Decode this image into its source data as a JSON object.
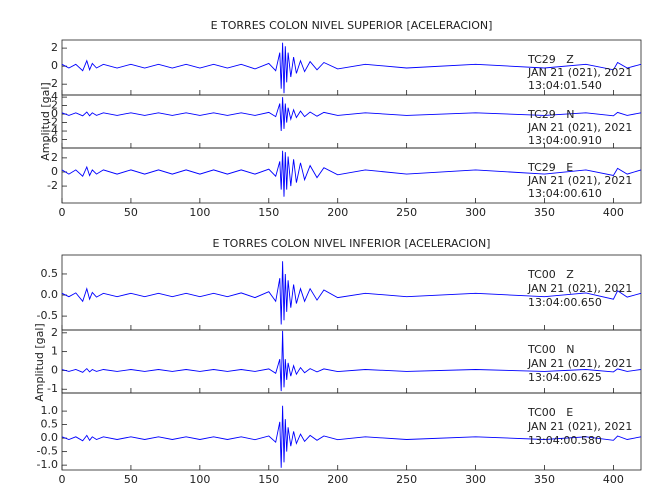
{
  "chart_data": [
    {
      "type": "line",
      "title": "E TORRES COLON NIVEL SUPERIOR [ACELERACION]",
      "y_label": "Amplitud [gal]",
      "xlim": [
        0,
        420
      ],
      "xticks": [
        0,
        50,
        100,
        150,
        200,
        250,
        300,
        350,
        400
      ],
      "color": "#0000ff",
      "x": [
        0,
        5,
        10,
        15,
        18,
        20,
        22,
        25,
        30,
        40,
        50,
        60,
        70,
        80,
        90,
        100,
        110,
        120,
        130,
        140,
        150,
        155,
        158,
        159,
        160,
        161,
        162,
        163,
        164,
        166,
        168,
        170,
        173,
        176,
        180,
        185,
        190,
        200,
        220,
        250,
        300,
        350,
        380,
        400,
        403,
        410,
        420
      ],
      "panels": [
        {
          "ylim": [
            -3.2,
            2.9
          ],
          "yticks": [
            -2,
            0,
            2
          ],
          "annotation": [
            "TC29   Z",
            "JAN 21 (021), 2021",
            "13:04:01.540"
          ],
          "values": [
            0.2,
            -0.2,
            0.2,
            -0.5,
            0.6,
            -0.4,
            0.3,
            -0.2,
            0.2,
            -0.2,
            0.2,
            -0.2,
            0.2,
            -0.2,
            0.2,
            -0.2,
            0.2,
            -0.2,
            0.2,
            -0.3,
            0.3,
            -0.5,
            1.5,
            -2.5,
            2.6,
            -3,
            2.2,
            -1.8,
            1.5,
            -1.2,
            1,
            -0.8,
            0.6,
            -0.6,
            0.5,
            -0.4,
            0.4,
            -0.3,
            0.2,
            -0.2,
            0.2,
            -0.2,
            0.2,
            -0.4,
            0.4,
            -0.2,
            0.2
          ]
        },
        {
          "ylim": [
            -8,
            4.5
          ],
          "yticks": [
            -6,
            -4,
            -2,
            0,
            2,
            4
          ],
          "annotation": [
            "TC29   N",
            "JAN 21 (021), 2021",
            "13:04:00.910"
          ],
          "values": [
            0.3,
            -0.3,
            0.3,
            -0.4,
            0.5,
            -0.4,
            0.3,
            -0.3,
            0.3,
            -0.3,
            0.3,
            -0.3,
            0.3,
            -0.3,
            0.3,
            -0.3,
            0.3,
            -0.3,
            0.3,
            -0.3,
            0.4,
            -0.6,
            2.5,
            -4,
            4,
            -3.5,
            2.5,
            -2,
            1.5,
            -1.2,
            1,
            -0.8,
            0.7,
            -0.6,
            0.5,
            -0.5,
            0.4,
            -0.3,
            0.3,
            -0.3,
            0.3,
            -0.3,
            0.3,
            -0.4,
            0.4,
            -0.3,
            0.3
          ]
        },
        {
          "ylim": [
            -4.4,
            3.4
          ],
          "yticks": [
            -2,
            0,
            2
          ],
          "annotation": [
            "TC29   E",
            "JAN 21 (021), 2021",
            "13:04:00.610"
          ],
          "values": [
            0.3,
            -0.3,
            0.3,
            -0.6,
            0.7,
            -0.5,
            0.3,
            -0.3,
            0.3,
            -0.3,
            0.3,
            -0.3,
            0.3,
            -0.3,
            0.3,
            -0.3,
            0.3,
            -0.3,
            0.3,
            -0.3,
            0.4,
            -0.6,
            1.5,
            -2.5,
            3,
            -3.5,
            2.8,
            -2.5,
            2.2,
            -2,
            1.8,
            -1.5,
            1.3,
            -1.1,
            0.9,
            -0.8,
            0.6,
            -0.4,
            0.3,
            -0.3,
            0.3,
            -0.3,
            0.3,
            -0.5,
            0.5,
            -0.3,
            0.3
          ]
        }
      ]
    },
    {
      "type": "line",
      "title": "E TORRES COLON NIVEL INFERIOR [ACELERACION]",
      "y_label": "Amplitud [gal]",
      "xlim": [
        0,
        420
      ],
      "xticks": [
        0,
        50,
        100,
        150,
        200,
        250,
        300,
        350,
        400
      ],
      "color": "#0000ff",
      "x": [
        0,
        5,
        10,
        15,
        18,
        20,
        22,
        25,
        30,
        40,
        50,
        60,
        70,
        80,
        90,
        100,
        110,
        120,
        130,
        140,
        150,
        155,
        158,
        159,
        160,
        161,
        162,
        163,
        164,
        166,
        168,
        170,
        173,
        176,
        180,
        185,
        190,
        200,
        220,
        250,
        300,
        350,
        380,
        400,
        403,
        410,
        420
      ],
      "panels": [
        {
          "ylim": [
            -0.83,
            0.95
          ],
          "yticks": [
            -0.5,
            {
              "value": 0,
              "label": "0.0"
            },
            0.5
          ],
          "annotation": [
            "TC00   Z",
            "JAN 21 (021), 2021",
            "13:04:00.650"
          ],
          "values": [
            0.04,
            -0.04,
            0.05,
            -0.15,
            0.15,
            -0.1,
            0.06,
            -0.05,
            0.04,
            -0.04,
            0.04,
            -0.04,
            0.04,
            -0.04,
            0.04,
            -0.04,
            0.04,
            -0.04,
            0.05,
            -0.06,
            0.08,
            -0.15,
            0.4,
            -0.7,
            0.8,
            -0.6,
            0.5,
            -0.4,
            0.35,
            -0.3,
            0.25,
            -0.2,
            0.15,
            -0.15,
            0.15,
            -0.12,
            0.12,
            -0.06,
            0.04,
            -0.04,
            0.04,
            -0.04,
            0.05,
            -0.1,
            0.1,
            -0.05,
            0.04
          ]
        },
        {
          "ylim": [
            -1.2,
            2.15
          ],
          "yticks": [
            -1,
            0,
            1,
            2
          ],
          "annotation": [
            "TC00   N",
            "JAN 21 (021), 2021",
            "13:04:00.625"
          ],
          "values": [
            0.05,
            -0.05,
            0.05,
            -0.1,
            0.1,
            -0.08,
            0.05,
            -0.05,
            0.05,
            -0.05,
            0.05,
            -0.05,
            0.05,
            -0.05,
            0.05,
            -0.05,
            0.05,
            -0.05,
            0.05,
            -0.05,
            0.08,
            -0.15,
            0.6,
            -1.1,
            2.1,
            -0.9,
            0.6,
            -0.5,
            0.4,
            -0.3,
            0.25,
            -0.2,
            0.15,
            -0.12,
            0.1,
            -0.08,
            0.08,
            -0.06,
            0.05,
            -0.05,
            0.05,
            -0.05,
            0.05,
            -0.08,
            0.08,
            -0.05,
            0.05
          ]
        },
        {
          "ylim": [
            -1.18,
            1.67
          ],
          "yticks": [
            {
              "value": -1,
              "label": "-1.0"
            },
            -0.5,
            {
              "value": 0,
              "label": "0.0"
            },
            0.5,
            {
              "value": 1,
              "label": "1.0"
            }
          ],
          "annotation": [
            "TC00   E",
            "JAN 21 (021), 2021",
            "13:04:00.580"
          ],
          "values": [
            0.05,
            -0.05,
            0.05,
            -0.1,
            0.1,
            -0.08,
            0.05,
            -0.05,
            0.05,
            -0.05,
            0.05,
            -0.05,
            0.05,
            -0.05,
            0.05,
            -0.05,
            0.05,
            -0.05,
            0.05,
            -0.06,
            0.08,
            -0.15,
            0.6,
            -1.1,
            1.2,
            -0.9,
            0.7,
            -0.5,
            0.4,
            -0.3,
            0.25,
            -0.2,
            0.15,
            -0.12,
            0.1,
            -0.08,
            0.08,
            -0.06,
            0.05,
            -0.05,
            0.05,
            -0.05,
            0.05,
            -0.08,
            0.08,
            -0.05,
            0.05
          ]
        }
      ]
    }
  ]
}
